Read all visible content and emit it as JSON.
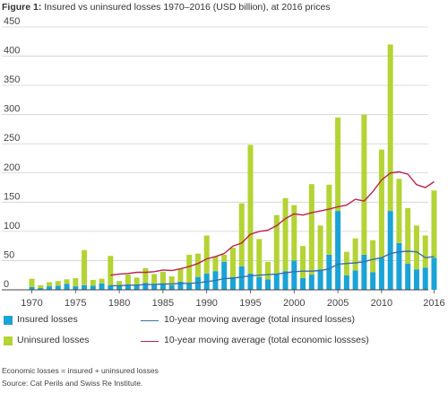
{
  "title": {
    "prefix": "Figure 1:",
    "text": "Insured vs uninsured losses 1970–2016 (USD billion), at 2016 prices"
  },
  "footnote": "Economic losses = insured + uninsured losses",
  "source": "Source: Cat Perils and Swiss Re Institute.",
  "colors": {
    "insured": "#1aa3d6",
    "uninsured": "#b4d334",
    "insured_avg": "#3a6fa8",
    "economic_avg": "#b8244a",
    "grid": "#d0d0d0",
    "axis": "#444444"
  },
  "chart_data": {
    "type": "bar",
    "stacked": true,
    "x": [
      1970,
      1971,
      1972,
      1973,
      1974,
      1975,
      1976,
      1977,
      1978,
      1979,
      1980,
      1981,
      1982,
      1983,
      1984,
      1985,
      1986,
      1987,
      1988,
      1989,
      1990,
      1991,
      1992,
      1993,
      1994,
      1995,
      1996,
      1997,
      1998,
      1999,
      2000,
      2001,
      2002,
      2003,
      2004,
      2005,
      2006,
      2007,
      2008,
      2009,
      2010,
      2011,
      2012,
      2013,
      2014,
      2015,
      2016
    ],
    "series": [
      {
        "name": "Insured losses",
        "kind": "bar",
        "values": [
          5,
          3,
          6,
          7,
          10,
          6,
          8,
          7,
          11,
          8,
          7,
          9,
          9,
          12,
          9,
          11,
          8,
          14,
          10,
          22,
          28,
          32,
          48,
          22,
          40,
          28,
          22,
          18,
          28,
          32,
          50,
          20,
          26,
          35,
          60,
          135,
          25,
          33,
          60,
          30,
          55,
          135,
          80,
          45,
          35,
          38,
          55
        ]
      },
      {
        "name": "Uninsured losses",
        "kind": "bar",
        "values": [
          14,
          5,
          7,
          8,
          8,
          14,
          60,
          10,
          8,
          50,
          8,
          17,
          12,
          25,
          18,
          20,
          15,
          22,
          50,
          40,
          65,
          25,
          12,
          50,
          108,
          220,
          65,
          30,
          100,
          125,
          95,
          55,
          155,
          75,
          120,
          160,
          40,
          55,
          240,
          55,
          185,
          285,
          110,
          95,
          75,
          55,
          115
        ]
      },
      {
        "name": "10-year moving average (total insured losses)",
        "kind": "line",
        "x": [
          1979,
          1980,
          1981,
          1982,
          1983,
          1984,
          1985,
          1986,
          1987,
          1988,
          1989,
          1990,
          1991,
          1992,
          1993,
          1994,
          1995,
          1996,
          1997,
          1998,
          1999,
          2000,
          2001,
          2002,
          2003,
          2004,
          2005,
          2006,
          2007,
          2008,
          2009,
          2010,
          2011,
          2012,
          2013,
          2014,
          2015,
          2016
        ],
        "values": [
          7,
          7,
          8,
          8,
          9,
          9,
          10,
          10,
          11,
          11,
          12,
          14,
          16,
          19,
          20,
          22,
          24,
          25,
          26,
          27,
          29,
          31,
          32,
          32,
          33,
          36,
          44,
          45,
          46,
          48,
          52,
          55,
          62,
          65,
          66,
          65,
          55,
          57
        ]
      },
      {
        "name": "10-year moving average (total economic lossses)",
        "kind": "line",
        "x": [
          1979,
          1980,
          1981,
          1982,
          1983,
          1984,
          1985,
          1986,
          1987,
          1988,
          1989,
          1990,
          1991,
          1992,
          1993,
          1994,
          1995,
          1996,
          1997,
          1998,
          1999,
          2000,
          2001,
          2002,
          2003,
          2004,
          2005,
          2006,
          2007,
          2008,
          2009,
          2010,
          2011,
          2012,
          2013,
          2014,
          2015,
          2016
        ],
        "values": [
          25,
          27,
          28,
          30,
          30,
          31,
          34,
          33,
          36,
          40,
          45,
          53,
          57,
          62,
          75,
          80,
          95,
          100,
          102,
          110,
          122,
          130,
          128,
          132,
          135,
          138,
          142,
          145,
          155,
          152,
          168,
          188,
          200,
          202,
          198,
          180,
          175,
          185
        ]
      }
    ],
    "xticks": [
      "1970",
      "1975",
      "1980",
      "1985",
      "1990",
      "1995",
      "2000",
      "2005",
      "2010",
      "2016"
    ],
    "yticks": [
      "0",
      "50",
      "100",
      "150",
      "200",
      "250",
      "300",
      "350",
      "400",
      "450"
    ],
    "ylim": [
      0,
      450
    ],
    "grid": true,
    "legend_position": "bottom",
    "legend": [
      {
        "label": "Insured losses",
        "marker": "box",
        "color_key": "insured"
      },
      {
        "label": "Uninsured losses",
        "marker": "box",
        "color_key": "uninsured"
      },
      {
        "label": "10-year moving average (total insured losses)",
        "marker": "line",
        "color_key": "insured_avg"
      },
      {
        "label": "10-year moving average (total economic lossses)",
        "marker": "line",
        "color_key": "economic_avg"
      }
    ]
  }
}
